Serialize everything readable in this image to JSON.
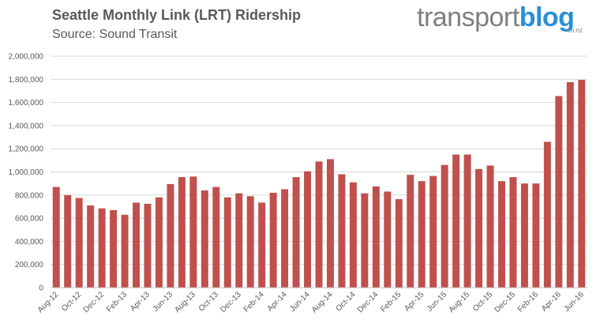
{
  "chart_data": {
    "type": "bar",
    "title": "Seattle Monthly Link (LRT) Ridership",
    "subtitle": "Source: Sound Transit",
    "xlabel": "",
    "ylabel": "",
    "ylim": [
      0,
      2000000
    ],
    "yticks": [
      "0",
      "200,000",
      "400,000",
      "600,000",
      "800,000",
      "1,000,000",
      "1,200,000",
      "1,400,000",
      "1,600,000",
      "1,800,000",
      "2,000,000"
    ],
    "grid": true,
    "legend": "none",
    "bar_color": "#c0504d",
    "categories": [
      "Aug-12",
      "Sep-12",
      "Oct-12",
      "Nov-12",
      "Dec-12",
      "Jan-13",
      "Feb-13",
      "Mar-13",
      "Apr-13",
      "May-13",
      "Jun-13",
      "Jul-13",
      "Aug-13",
      "Sep-13",
      "Oct-13",
      "Nov-13",
      "Dec-13",
      "Jan-14",
      "Feb-14",
      "Mar-14",
      "Apr-14",
      "May-14",
      "Jun-14",
      "Jul-14",
      "Aug-14",
      "Sep-14",
      "Oct-14",
      "Nov-14",
      "Dec-14",
      "Jan-15",
      "Feb-15",
      "Mar-15",
      "Apr-15",
      "May-15",
      "Jun-15",
      "Jul-15",
      "Aug-15",
      "Sep-15",
      "Oct-15",
      "Nov-15",
      "Dec-15",
      "Jan-16",
      "Feb-16",
      "Mar-16",
      "Apr-16",
      "May-16",
      "Jun-16"
    ],
    "xtick_labels": [
      "Aug-12",
      "Oct-12",
      "Dec-12",
      "Feb-13",
      "Apr-13",
      "Jun-13",
      "Aug-13",
      "Oct-13",
      "Dec-13",
      "Feb-14",
      "Apr-14",
      "Jun-14",
      "Aug-14",
      "Oct-14",
      "Dec-14",
      "Feb-15",
      "Apr-15",
      "Jun-15",
      "Aug-15",
      "Oct-15",
      "Dec-15",
      "Feb-16",
      "Apr-16",
      "Jun-16"
    ],
    "values": [
      870000,
      800000,
      775000,
      710000,
      685000,
      670000,
      630000,
      735000,
      725000,
      780000,
      895000,
      955000,
      960000,
      840000,
      870000,
      780000,
      815000,
      790000,
      735000,
      820000,
      850000,
      955000,
      1005000,
      1090000,
      1110000,
      980000,
      910000,
      815000,
      875000,
      830000,
      765000,
      975000,
      920000,
      965000,
      1060000,
      1150000,
      1150000,
      1025000,
      1055000,
      920000,
      955000,
      900000,
      900000,
      1260000,
      1655000,
      1775000,
      1795000
    ]
  },
  "logo": {
    "part1": "transport",
    "part2": "blog",
    "tld": ".co.nz",
    "color_gray": "#7f7f7f",
    "color_blue": "#2a8fd6"
  }
}
